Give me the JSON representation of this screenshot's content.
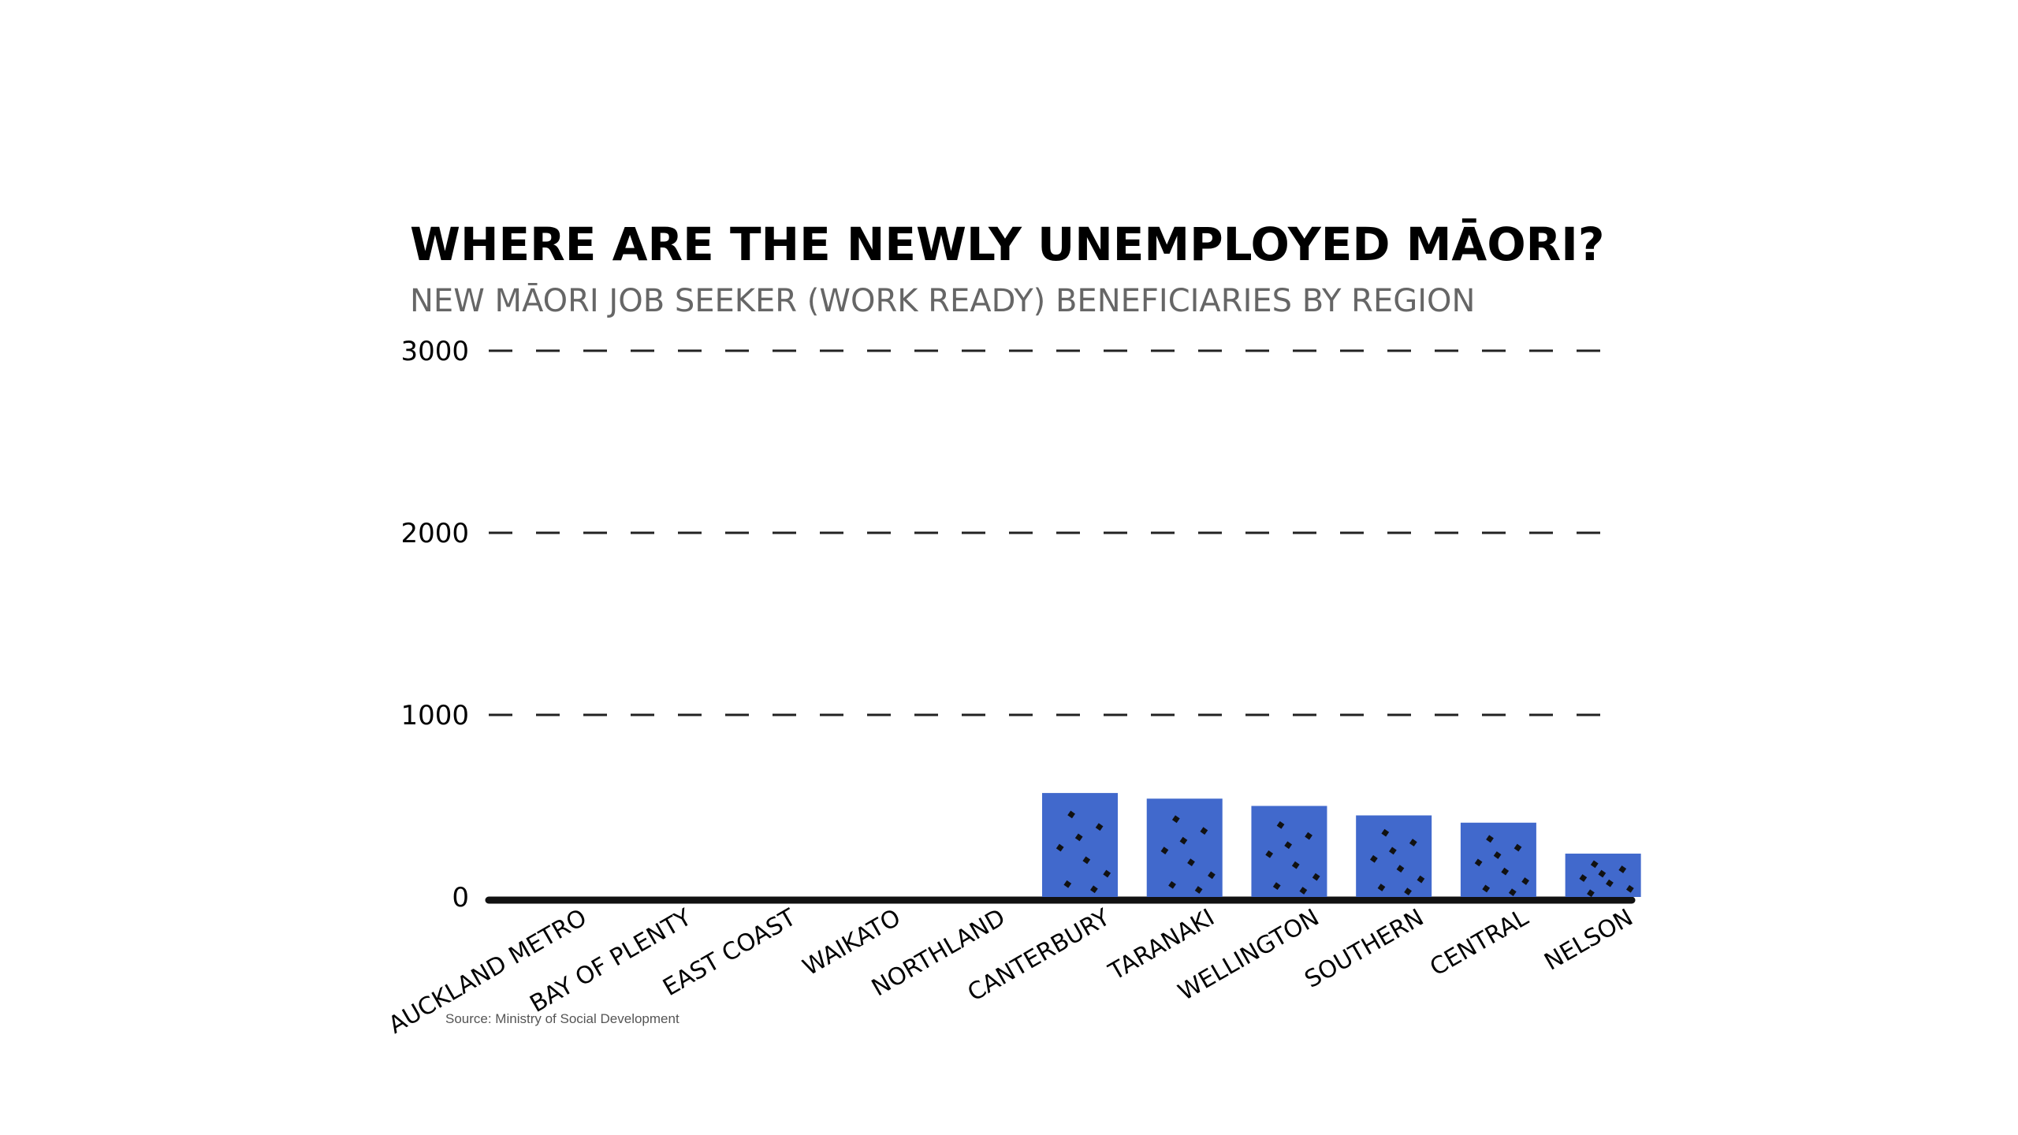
{
  "chart_data": {
    "type": "bar",
    "title": "WHERE ARE THE NEWLY UNEMPLOYED MĀORI?",
    "subtitle": "NEW MĀORI JOB SEEKER (WORK READY) BENEFICIARIES BY REGION",
    "categories": [
      "AUCKLAND METRO",
      "BAY OF PLENTY",
      "EAST COAST",
      "WAIKATO",
      "NORTHLAND",
      "CANTERBURY",
      "TARANAKI",
      "WELLINGTON",
      "SOUTHERN",
      "CENTRAL",
      "NELSON"
    ],
    "values": [
      null,
      null,
      null,
      null,
      null,
      571,
      540,
      500,
      448,
      408,
      238
    ],
    "yticks": [
      "0",
      "1000",
      "2000",
      "3000"
    ],
    "ylim": [
      0,
      3000
    ],
    "xlabel": "",
    "ylabel": "",
    "grid": true,
    "bar_color": "#4169cc",
    "source": "Source: Ministry of Social Development"
  }
}
